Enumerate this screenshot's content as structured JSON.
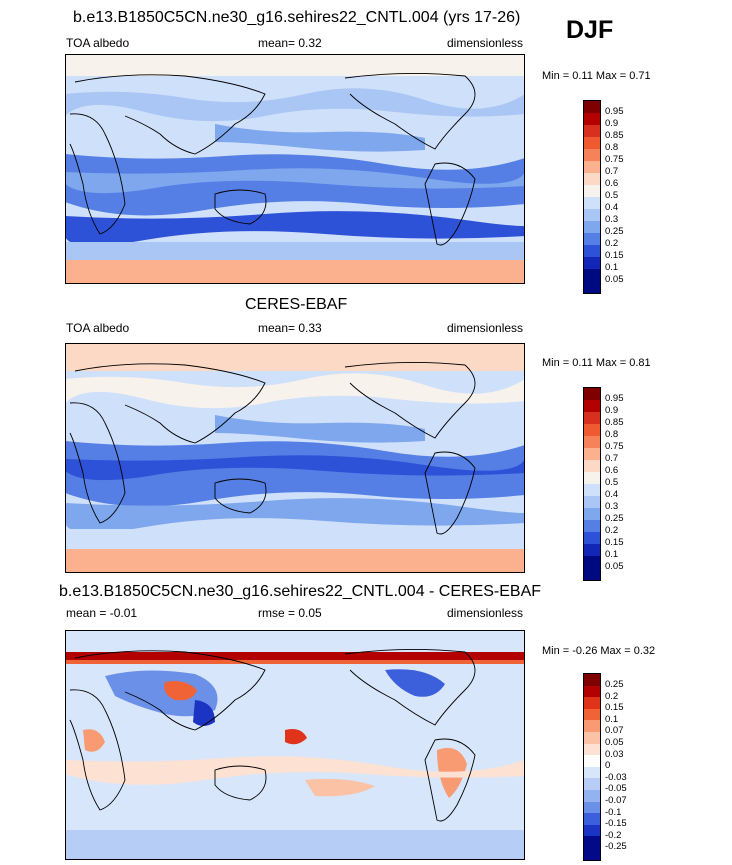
{
  "season": "DJF",
  "panels": [
    {
      "title": "b.e13.B1850C5CN.ne30_g16.sehires22_CNTL.004 (yrs 17-26)",
      "left_label": "TOA albedo",
      "mid_label": "mean=  0.32",
      "right_label": "dimensionless",
      "minmax": "Min =   0.11 Max =   0.71",
      "colorbar_labels": [
        "0.95",
        "0.9",
        "0.85",
        "0.8",
        "0.75",
        "0.7",
        "0.6",
        "0.5",
        "0.4",
        "0.3",
        "0.25",
        "0.2",
        "0.15",
        "0.1",
        "0.05"
      ]
    },
    {
      "title": "CERES-EBAF",
      "left_label": "TOA albedo",
      "mid_label": "mean=  0.33",
      "right_label": "dimensionless",
      "minmax": "Min =   0.11 Max =   0.81",
      "colorbar_labels": [
        "0.95",
        "0.9",
        "0.85",
        "0.8",
        "0.75",
        "0.7",
        "0.6",
        "0.5",
        "0.4",
        "0.3",
        "0.25",
        "0.2",
        "0.15",
        "0.1",
        "0.05"
      ]
    },
    {
      "title": "b.e13.B1850C5CN.ne30_g16.sehires22_CNTL.004 - CERES-EBAF",
      "left_label": "mean =  -0.01",
      "mid_label": "rmse =  0.05",
      "right_label": "dimensionless",
      "minmax": "Min =  -0.26 Max =   0.32",
      "colorbar_labels": [
        "0.25",
        "0.2",
        "0.15",
        "0.1",
        "0.07",
        "0.05",
        "0.03",
        "0",
        "-0.03",
        "-0.05",
        "-0.07",
        "-0.1",
        "-0.15",
        "-0.2",
        "-0.25"
      ]
    }
  ],
  "chart_data": [
    {
      "type": "heatmap",
      "title": "b.e13.B1850C5CN.ne30_g16.sehires22_CNTL.004 (yrs 17-26)",
      "variable": "TOA albedo",
      "units": "dimensionless",
      "season": "DJF",
      "mean": 0.32,
      "min": 0.11,
      "max": 0.71,
      "contour_levels": [
        0.05,
        0.1,
        0.15,
        0.2,
        0.25,
        0.3,
        0.4,
        0.5,
        0.6,
        0.7,
        0.75,
        0.8,
        0.85,
        0.9,
        0.95
      ]
    },
    {
      "type": "heatmap",
      "title": "CERES-EBAF",
      "variable": "TOA albedo",
      "units": "dimensionless",
      "season": "DJF",
      "mean": 0.33,
      "min": 0.11,
      "max": 0.81,
      "contour_levels": [
        0.05,
        0.1,
        0.15,
        0.2,
        0.25,
        0.3,
        0.4,
        0.5,
        0.6,
        0.7,
        0.75,
        0.8,
        0.85,
        0.9,
        0.95
      ]
    },
    {
      "type": "heatmap",
      "title": "b.e13.B1850C5CN.ne30_g16.sehires22_CNTL.004 - CERES-EBAF",
      "variable": "TOA albedo difference",
      "units": "dimensionless",
      "season": "DJF",
      "mean": -0.01,
      "rmse": 0.05,
      "min": -0.26,
      "max": 0.32,
      "contour_levels": [
        -0.25,
        -0.2,
        -0.15,
        -0.1,
        -0.07,
        -0.05,
        -0.03,
        0,
        0.03,
        0.05,
        0.07,
        0.1,
        0.15,
        0.2,
        0.25
      ]
    }
  ],
  "colors": {
    "abs_scale": [
      "#7f0000",
      "#b30000",
      "#d7301f",
      "#ef5a30",
      "#f7825a",
      "#fbb08e",
      "#fcd9c4",
      "#f7f2ec",
      "#cfe0fb",
      "#a9c6f5",
      "#7ea7ee",
      "#557fe4",
      "#2d52d8",
      "#1226b8",
      "#000a80"
    ],
    "diff_scale": [
      "#7f0000",
      "#b30000",
      "#e0341a",
      "#f06336",
      "#f89a72",
      "#fbc2a6",
      "#fde1d2",
      "#ffffff",
      "#d8e6fb",
      "#b6cdf5",
      "#92b3ef",
      "#6b90e8",
      "#3c5fdc",
      "#1b34c4",
      "#020a8a"
    ]
  }
}
